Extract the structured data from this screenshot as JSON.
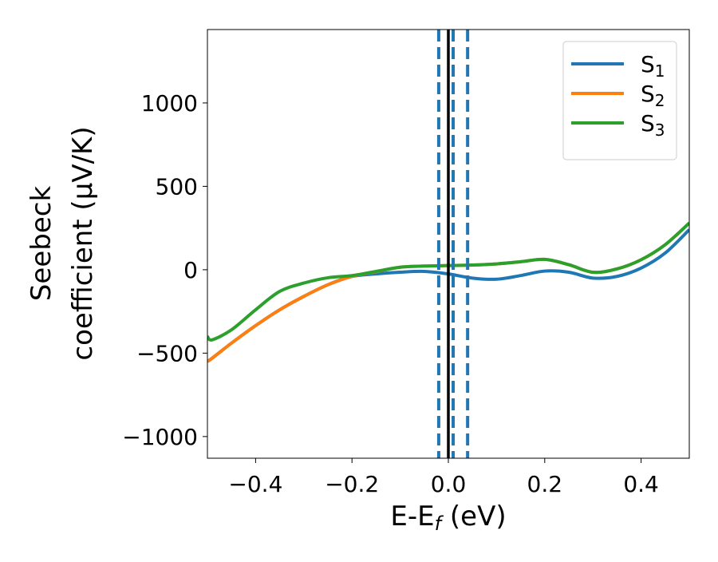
{
  "chart_data": {
    "type": "line",
    "title": "",
    "xlabel": "E-E_f (eV)",
    "xlabel_main": "E-E",
    "xlabel_sub": "f",
    "xlabel_tail": " (eV)",
    "ylabel_line1": "Seebeck",
    "ylabel_line2": "coefficient  (μV/K)",
    "xlim": [
      -0.5,
      0.5
    ],
    "ylim": [
      -1130,
      1440
    ],
    "xticks": [
      -0.4,
      -0.2,
      0.0,
      0.2,
      0.4
    ],
    "xtick_labels": [
      "−0.4",
      "−0.2",
      "0.0",
      "0.2",
      "0.4"
    ],
    "yticks": [
      -1000,
      -500,
      0,
      500,
      1000
    ],
    "ytick_labels": [
      "−1000",
      "−500",
      "0",
      "500",
      "1000"
    ],
    "grid": false,
    "legend_position": "top-right",
    "x": [
      -0.5,
      -0.49,
      -0.45,
      -0.4,
      -0.35,
      -0.3,
      -0.25,
      -0.2,
      -0.15,
      -0.1,
      -0.05,
      0,
      0.05,
      0.1,
      0.15,
      0.2,
      0.25,
      0.3,
      0.35,
      0.4,
      0.45,
      0.5
    ],
    "series": [
      {
        "name": "S1",
        "label_main": "S",
        "label_sub": "1",
        "color": "#1f77b4",
        "values": [
          -550,
          -530,
          -440,
          -335,
          -240,
          -160,
          -90,
          -40,
          -25,
          -15,
          -10,
          -25,
          -50,
          -57,
          -35,
          -8,
          -15,
          -50,
          -40,
          10,
          100,
          240
        ]
      },
      {
        "name": "S2",
        "label_main": "S",
        "label_sub": "2",
        "color": "#ff7f0e",
        "values": [
          -550,
          -530,
          -440,
          -335,
          -240,
          -160,
          -90,
          -40,
          -12,
          15,
          22,
          25,
          28,
          35,
          48,
          62,
          30,
          -15,
          5,
          60,
          150,
          280
        ]
      },
      {
        "name": "S3",
        "label_main": "S",
        "label_sub": "3",
        "color": "#2ca02c",
        "values": [
          -400,
          -420,
          -360,
          -240,
          -130,
          -80,
          -48,
          -35,
          -10,
          15,
          22,
          25,
          28,
          35,
          48,
          62,
          30,
          -15,
          5,
          60,
          150,
          280
        ]
      }
    ],
    "vlines": [
      {
        "x": 0.0,
        "style": "solid",
        "color": "#000000"
      },
      {
        "x": -0.02,
        "style": "dashed",
        "color": "#1f77b4"
      },
      {
        "x": 0.01,
        "style": "dashed",
        "color": "#1f77b4"
      },
      {
        "x": 0.04,
        "style": "dashed",
        "color": "#1f77b4"
      }
    ]
  }
}
